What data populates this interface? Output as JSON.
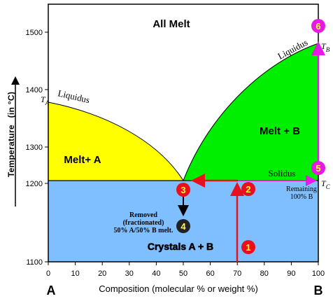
{
  "diagram": {
    "regions": {
      "all_melt": "All Melt",
      "melt_a": "Melt+ A",
      "melt_b": "Melt + B",
      "crystals": "Crystals A + B"
    },
    "curves": {
      "liquidus_left": "Liquidus",
      "liquidus_right": "Liquidus",
      "solidus": "Solidus"
    },
    "temp_marks": {
      "ta_main": "T",
      "ta_sub": "A",
      "tb_main": "T",
      "tb_sub": "B",
      "tc_main": "T",
      "tc_sub": "C"
    },
    "notes": {
      "remaining_l1": "Remaining",
      "remaining_l2": "100% B",
      "removed_l1": "Removed",
      "removed_l2": "(fractionated)",
      "removed_l3": "50% A/50% B melt."
    },
    "steps": [
      {
        "num": "1",
        "color": "#e8101c"
      },
      {
        "num": "2",
        "color": "#e8101c"
      },
      {
        "num": "3",
        "color": "#e8101c"
      },
      {
        "num": "4",
        "color": "#222222"
      },
      {
        "num": "5",
        "color": "#e51be5"
      },
      {
        "num": "6",
        "color": "#e51be5"
      }
    ],
    "endpoints": {
      "left": "A",
      "right": "B"
    },
    "colors": {
      "melt_a": "#ffff00",
      "melt_b": "#00ee00",
      "crystals": "#7fbfff",
      "path_red": "#e8101c",
      "path_magenta": "#e51be5",
      "step_number": "#ffff33"
    }
  },
  "axes": {
    "x_label": "Composition  (molecular %  or  weight %)",
    "y_label_main": "Temperature",
    "y_label_unit": "(in °C)",
    "x_ticks": [
      "0",
      "10",
      "20",
      "30",
      "40",
      "50",
      "60",
      "70",
      "80",
      "90",
      "100"
    ],
    "y_ticks": [
      "1100",
      "1200",
      "1300",
      "1400",
      "1500"
    ]
  }
}
